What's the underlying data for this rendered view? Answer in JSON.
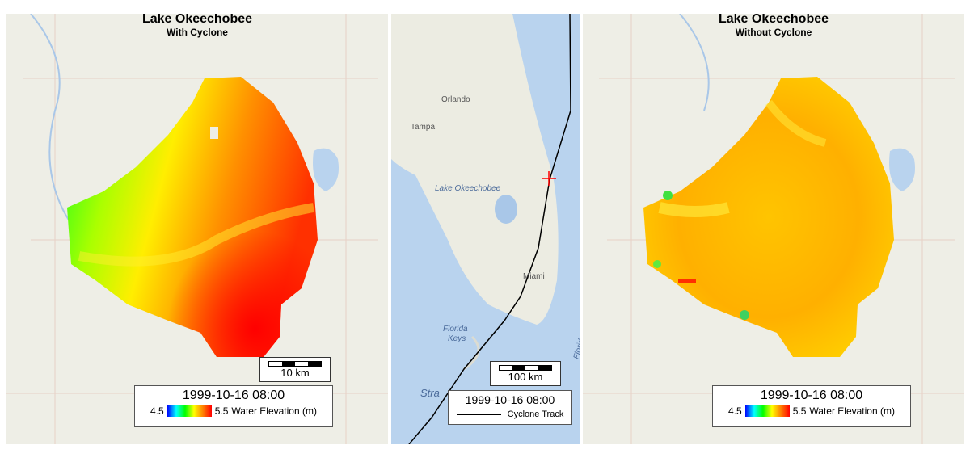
{
  "left_panel": {
    "title": "Lake Okeechobee",
    "subtitle": "With Cyclone",
    "scale_label": "10 km",
    "timestamp": "1999-10-16 08:00",
    "legend_min": "4.5",
    "legend_max": "5.5",
    "legend_label": "Water Elevation (m)"
  },
  "middle_panel": {
    "cities": [
      "Orlando",
      "Tampa",
      "Miami"
    ],
    "lake_label": "Lake Okeechobee",
    "keys_label_1": "Florida",
    "keys_label_2": "Keys",
    "strait_label": "Stra",
    "current_label": "Florid",
    "scale_label": "100 km",
    "timestamp": "1999-10-16 08:00",
    "legend_label": "Cyclone Track"
  },
  "right_panel": {
    "title": "Lake Okeechobee",
    "subtitle": "Without Cyclone",
    "scale_label": "",
    "timestamp": "1999-10-16 08:00",
    "legend_min": "4.5",
    "legend_max": "5.5",
    "legend_label": "Water Elevation (m)"
  },
  "colors": {
    "land": "#eeeee6",
    "ocean": "#b9d3ee",
    "track": "#000000",
    "cyclone_marker": "#ff0000"
  }
}
